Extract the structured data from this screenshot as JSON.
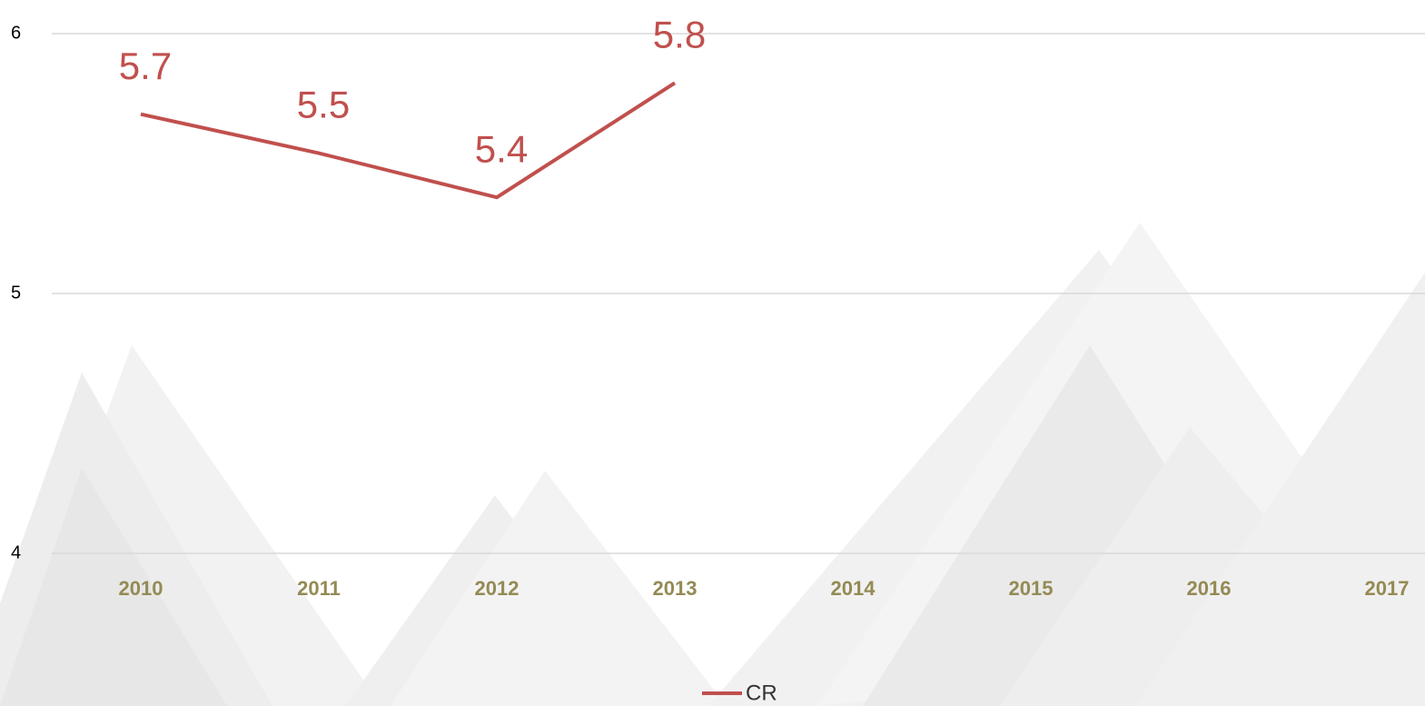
{
  "chart_data": {
    "type": "line",
    "categories": [
      "2010",
      "2011",
      "2012",
      "2013",
      "2014",
      "2015",
      "2016",
      "2017"
    ],
    "series": [
      {
        "name": "CR",
        "color": "#c0504d",
        "values": [
          5.69,
          5.54,
          5.37,
          5.81,
          null,
          null,
          null,
          null
        ],
        "value_labels": [
          "5.7",
          "5.5",
          "5.4",
          "5.8",
          null,
          null,
          null,
          null
        ]
      }
    ],
    "ylim": [
      4,
      6
    ],
    "yticks": [
      4,
      5,
      6
    ],
    "grid": true,
    "legend": "bottom"
  }
}
